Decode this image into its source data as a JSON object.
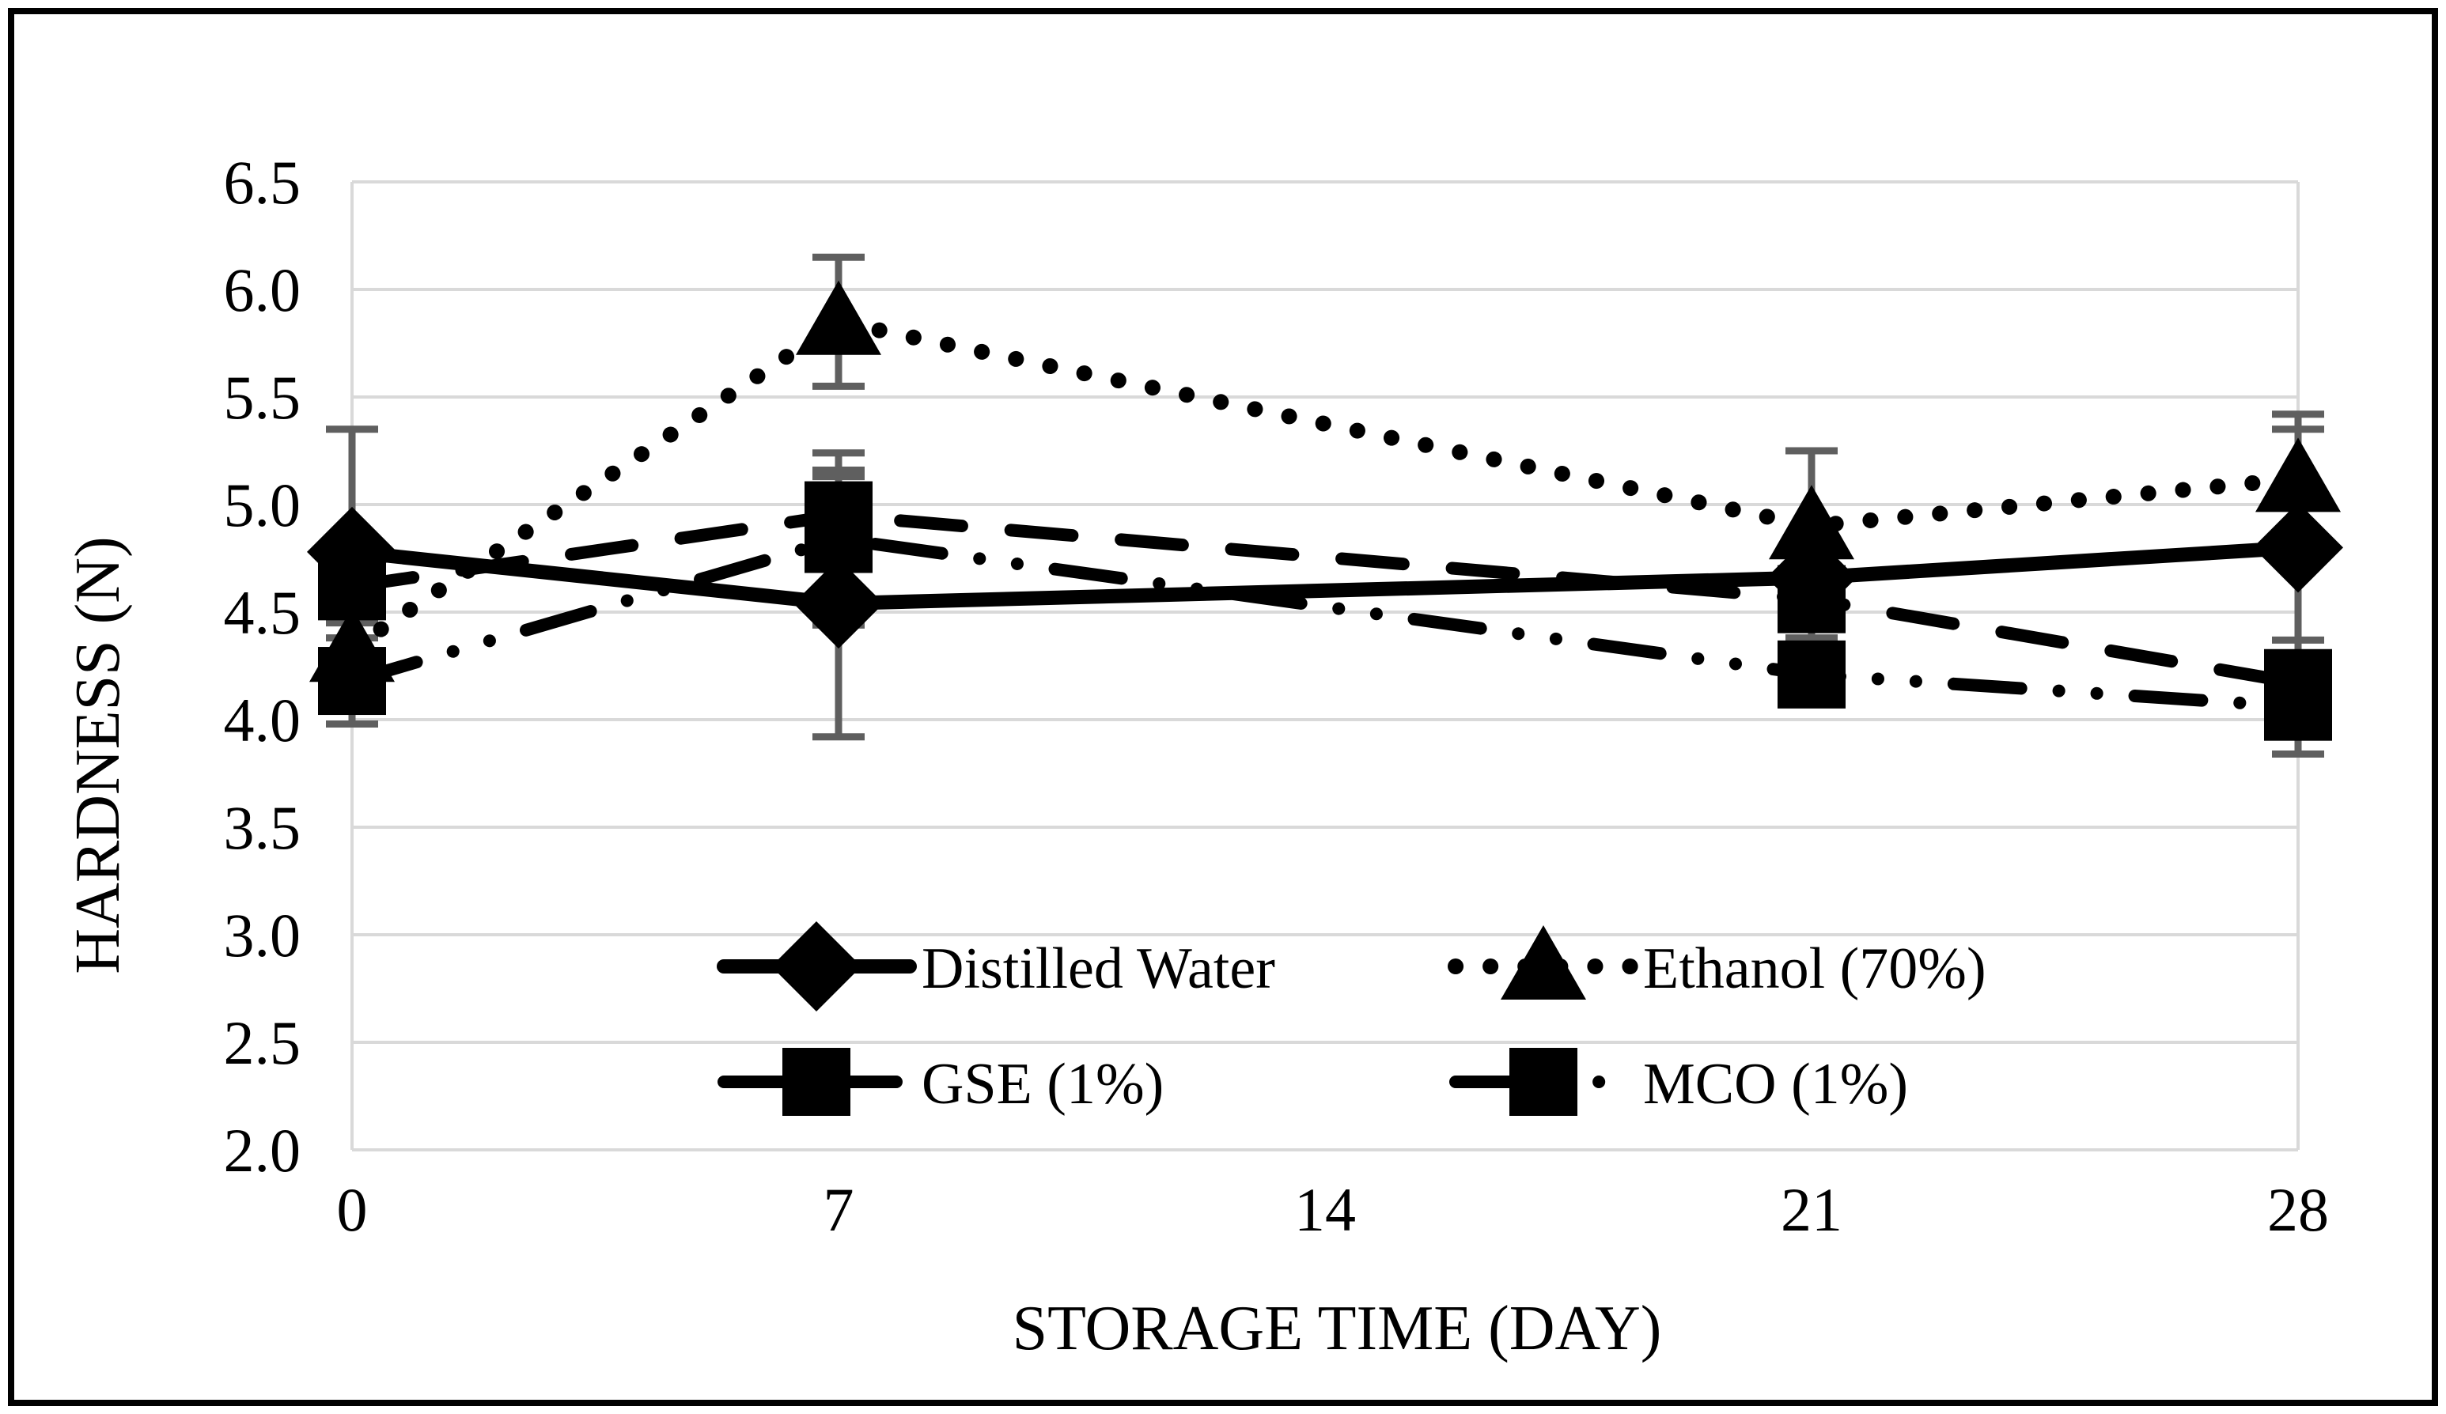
{
  "figure": {
    "background": "#ffffff",
    "border_color": "#000000"
  },
  "colors": {
    "series": "#000000",
    "gridline": "#d9d9d9",
    "plot_edge": "#d9d9d9",
    "error_bar": "#5f5f5f",
    "text": "#000000"
  },
  "chart_data": {
    "type": "line",
    "title": "",
    "xlabel": "STORAGE TIME (DAY)",
    "ylabel": "HARDNESS (N)",
    "x": [
      0,
      7,
      21,
      28
    ],
    "xlim": [
      0,
      28
    ],
    "ylim": [
      2.0,
      6.5
    ],
    "y_tick_step": 0.5,
    "grid": true,
    "legend_position": "inside-bottom-center",
    "x_tick_values": [
      0,
      7,
      14,
      21,
      28
    ],
    "x_tick_labels": [
      "0",
      "7",
      "14",
      "21",
      "28"
    ],
    "y_tick_values": [
      6.5,
      6.0,
      5.5,
      5.0,
      4.5,
      4.0,
      3.5,
      3.0,
      2.5,
      2.0
    ],
    "y_tick_labels": [
      "6.5",
      "6.0",
      "5.5",
      "5.0",
      "4.5",
      "4.0",
      "3.5",
      "3.0",
      "2.5",
      "2.0"
    ],
    "series": [
      {
        "name": "Distilled Water",
        "marker": "diamond",
        "line_style": "solid",
        "values": [
          4.78,
          4.54,
          4.66,
          4.8
        ],
        "error": [
          0.57,
          0.62,
          0.1,
          0.55
        ]
      },
      {
        "name": "Ethanol (70%)",
        "marker": "triangle",
        "line_style": "dotted",
        "values": [
          4.33,
          5.85,
          4.9,
          5.12
        ],
        "error": [
          0.12,
          0.3,
          0.35,
          0.3
        ]
      },
      {
        "name": "GSE (1%)",
        "marker": "square",
        "line_style": "dashed",
        "values": [
          4.62,
          4.95,
          4.56,
          4.17
        ],
        "error": [
          0.15,
          0.18,
          0.18,
          0.2
        ]
      },
      {
        "name": "MCO (1%)",
        "marker": "square",
        "line_style": "dash-dot-dot",
        "values": [
          4.18,
          4.84,
          4.21,
          4.06
        ],
        "error": [
          0.2,
          0.4,
          0.14,
          0.22
        ]
      }
    ]
  },
  "legend": {
    "entries": [
      {
        "label": "Distilled Water"
      },
      {
        "label": "Ethanol (70%)"
      },
      {
        "label": "GSE (1%)"
      },
      {
        "label": "MCO (1%)"
      }
    ]
  }
}
